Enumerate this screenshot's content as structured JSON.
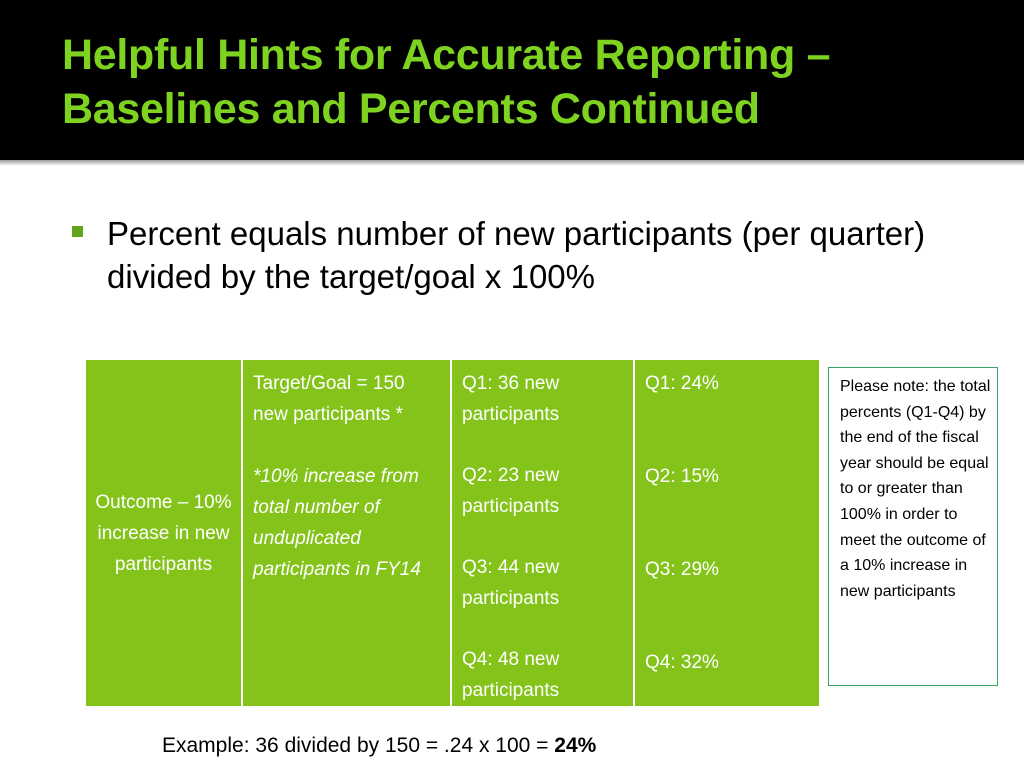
{
  "slide": {
    "title_line1": "Helpful Hints for Accurate Reporting –",
    "title_line2": "Baselines and Percents Continued",
    "bullet": "Percent equals number of new participants (per quarter) divided by the target/goal x 100%",
    "table": {
      "outcome": "Outcome – 10% increase in new participants",
      "target": "Target/Goal = 150 new participants *",
      "target_note": "*10% increase from total number of unduplicated participants in FY14",
      "quarters": [
        "Q1: 36 new participants",
        "Q2: 23 new participants",
        "Q3: 44 new participants",
        "Q4: 48 new participants"
      ],
      "percents": [
        "Q1: 24%",
        "Q2: 15%",
        "Q3: 29%",
        "Q4: 32%"
      ]
    },
    "note": "Please note: the total percents (Q1-Q4) by the end of the fiscal year should be equal to or greater than 100% in order to meet the outcome of a 10% increase in new participants",
    "example_prefix": "Example: 36 divided by 150 = .24 x 100 = ",
    "example_result": "24%"
  },
  "colors": {
    "title_green": "#7ed321",
    "table_green": "#84c31a",
    "bullet_green": "#5fa419",
    "note_border": "#3aa35f"
  }
}
